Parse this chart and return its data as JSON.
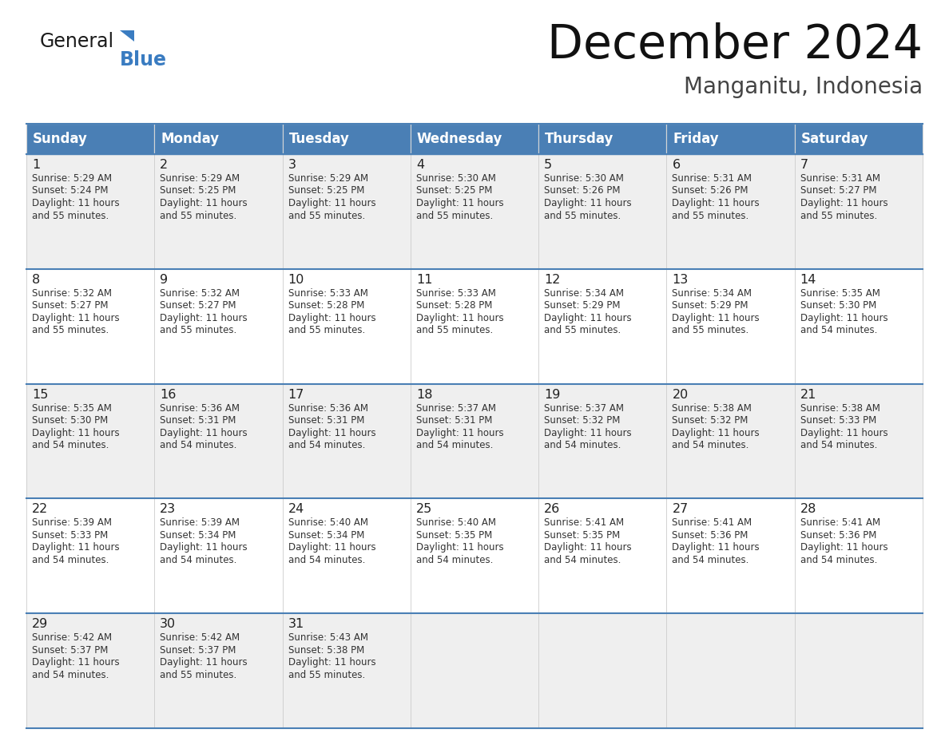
{
  "title": "December 2024",
  "subtitle": "Manganitu, Indonesia",
  "header_bg_color": "#4A7FB5",
  "header_text_color": "#FFFFFF",
  "day_headers": [
    "Sunday",
    "Monday",
    "Tuesday",
    "Wednesday",
    "Thursday",
    "Friday",
    "Saturday"
  ],
  "row_bg_colors": [
    "#EFEFEF",
    "#FFFFFF"
  ],
  "grid_line_color": "#4A7FB5",
  "cell_line_color": "#BBBBBB",
  "text_color": "#333333",
  "day_num_color": "#222222",
  "background_color": "#FFFFFF",
  "logo_general_color": "#1a1a1a",
  "logo_blue_color": "#3a7cc1",
  "logo_triangle_color": "#3a7cc1",
  "days": [
    {
      "day": 1,
      "col": 0,
      "row": 0,
      "sunrise": "5:29 AM",
      "sunset": "5:24 PM",
      "daylight": "11 hours\nand 55 minutes."
    },
    {
      "day": 2,
      "col": 1,
      "row": 0,
      "sunrise": "5:29 AM",
      "sunset": "5:25 PM",
      "daylight": "11 hours\nand 55 minutes."
    },
    {
      "day": 3,
      "col": 2,
      "row": 0,
      "sunrise": "5:29 AM",
      "sunset": "5:25 PM",
      "daylight": "11 hours\nand 55 minutes."
    },
    {
      "day": 4,
      "col": 3,
      "row": 0,
      "sunrise": "5:30 AM",
      "sunset": "5:25 PM",
      "daylight": "11 hours\nand 55 minutes."
    },
    {
      "day": 5,
      "col": 4,
      "row": 0,
      "sunrise": "5:30 AM",
      "sunset": "5:26 PM",
      "daylight": "11 hours\nand 55 minutes."
    },
    {
      "day": 6,
      "col": 5,
      "row": 0,
      "sunrise": "5:31 AM",
      "sunset": "5:26 PM",
      "daylight": "11 hours\nand 55 minutes."
    },
    {
      "day": 7,
      "col": 6,
      "row": 0,
      "sunrise": "5:31 AM",
      "sunset": "5:27 PM",
      "daylight": "11 hours\nand 55 minutes."
    },
    {
      "day": 8,
      "col": 0,
      "row": 1,
      "sunrise": "5:32 AM",
      "sunset": "5:27 PM",
      "daylight": "11 hours\nand 55 minutes."
    },
    {
      "day": 9,
      "col": 1,
      "row": 1,
      "sunrise": "5:32 AM",
      "sunset": "5:27 PM",
      "daylight": "11 hours\nand 55 minutes."
    },
    {
      "day": 10,
      "col": 2,
      "row": 1,
      "sunrise": "5:33 AM",
      "sunset": "5:28 PM",
      "daylight": "11 hours\nand 55 minutes."
    },
    {
      "day": 11,
      "col": 3,
      "row": 1,
      "sunrise": "5:33 AM",
      "sunset": "5:28 PM",
      "daylight": "11 hours\nand 55 minutes."
    },
    {
      "day": 12,
      "col": 4,
      "row": 1,
      "sunrise": "5:34 AM",
      "sunset": "5:29 PM",
      "daylight": "11 hours\nand 55 minutes."
    },
    {
      "day": 13,
      "col": 5,
      "row": 1,
      "sunrise": "5:34 AM",
      "sunset": "5:29 PM",
      "daylight": "11 hours\nand 55 minutes."
    },
    {
      "day": 14,
      "col": 6,
      "row": 1,
      "sunrise": "5:35 AM",
      "sunset": "5:30 PM",
      "daylight": "11 hours\nand 54 minutes."
    },
    {
      "day": 15,
      "col": 0,
      "row": 2,
      "sunrise": "5:35 AM",
      "sunset": "5:30 PM",
      "daylight": "11 hours\nand 54 minutes."
    },
    {
      "day": 16,
      "col": 1,
      "row": 2,
      "sunrise": "5:36 AM",
      "sunset": "5:31 PM",
      "daylight": "11 hours\nand 54 minutes."
    },
    {
      "day": 17,
      "col": 2,
      "row": 2,
      "sunrise": "5:36 AM",
      "sunset": "5:31 PM",
      "daylight": "11 hours\nand 54 minutes."
    },
    {
      "day": 18,
      "col": 3,
      "row": 2,
      "sunrise": "5:37 AM",
      "sunset": "5:31 PM",
      "daylight": "11 hours\nand 54 minutes."
    },
    {
      "day": 19,
      "col": 4,
      "row": 2,
      "sunrise": "5:37 AM",
      "sunset": "5:32 PM",
      "daylight": "11 hours\nand 54 minutes."
    },
    {
      "day": 20,
      "col": 5,
      "row": 2,
      "sunrise": "5:38 AM",
      "sunset": "5:32 PM",
      "daylight": "11 hours\nand 54 minutes."
    },
    {
      "day": 21,
      "col": 6,
      "row": 2,
      "sunrise": "5:38 AM",
      "sunset": "5:33 PM",
      "daylight": "11 hours\nand 54 minutes."
    },
    {
      "day": 22,
      "col": 0,
      "row": 3,
      "sunrise": "5:39 AM",
      "sunset": "5:33 PM",
      "daylight": "11 hours\nand 54 minutes."
    },
    {
      "day": 23,
      "col": 1,
      "row": 3,
      "sunrise": "5:39 AM",
      "sunset": "5:34 PM",
      "daylight": "11 hours\nand 54 minutes."
    },
    {
      "day": 24,
      "col": 2,
      "row": 3,
      "sunrise": "5:40 AM",
      "sunset": "5:34 PM",
      "daylight": "11 hours\nand 54 minutes."
    },
    {
      "day": 25,
      "col": 3,
      "row": 3,
      "sunrise": "5:40 AM",
      "sunset": "5:35 PM",
      "daylight": "11 hours\nand 54 minutes."
    },
    {
      "day": 26,
      "col": 4,
      "row": 3,
      "sunrise": "5:41 AM",
      "sunset": "5:35 PM",
      "daylight": "11 hours\nand 54 minutes."
    },
    {
      "day": 27,
      "col": 5,
      "row": 3,
      "sunrise": "5:41 AM",
      "sunset": "5:36 PM",
      "daylight": "11 hours\nand 54 minutes."
    },
    {
      "day": 28,
      "col": 6,
      "row": 3,
      "sunrise": "5:41 AM",
      "sunset": "5:36 PM",
      "daylight": "11 hours\nand 54 minutes."
    },
    {
      "day": 29,
      "col": 0,
      "row": 4,
      "sunrise": "5:42 AM",
      "sunset": "5:37 PM",
      "daylight": "11 hours\nand 54 minutes."
    },
    {
      "day": 30,
      "col": 1,
      "row": 4,
      "sunrise": "5:42 AM",
      "sunset": "5:37 PM",
      "daylight": "11 hours\nand 55 minutes."
    },
    {
      "day": 31,
      "col": 2,
      "row": 4,
      "sunrise": "5:43 AM",
      "sunset": "5:38 PM",
      "daylight": "11 hours\nand 55 minutes."
    }
  ],
  "num_rows": 5,
  "num_cols": 7
}
